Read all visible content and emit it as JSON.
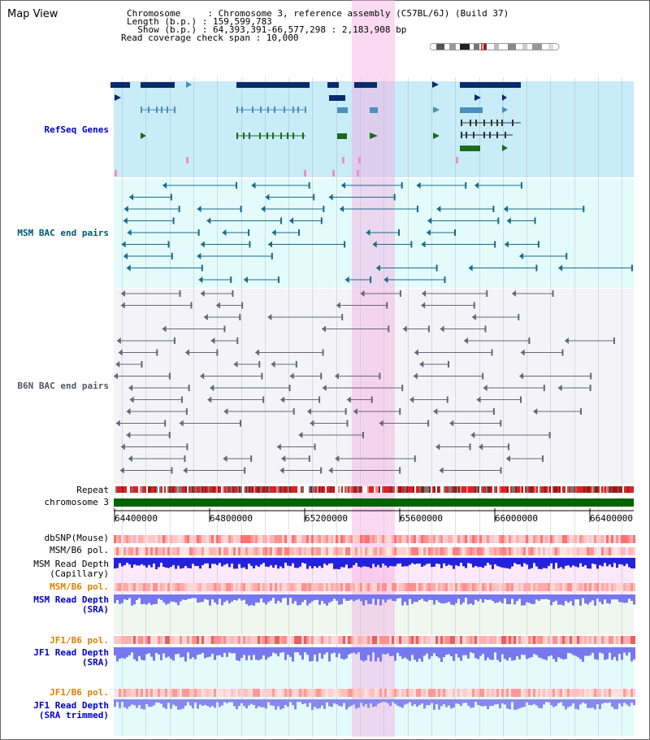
{
  "header": {
    "title": "Map View",
    "chromosome_line": "Chromosome     : Chromosome 3, reference assembly (C57BL/6J) (Build 37)",
    "length_line": "Length (b.p.) : 159,599,783",
    "show_line": "  Show (b.p.) : 64,393,391-66,577,298 : 2,183,908 bp",
    "coverage_line": "Read coverage check span : 10,000"
  },
  "tracks": {
    "refseq": "RefSeq Genes",
    "msm_bac": "MSM BAC end pairs",
    "b6n_bac": "B6N BAC end pairs",
    "repeat": "Repeat",
    "chromosome": "chromosome 3",
    "dbsnp": "dbSNP(Mouse)",
    "msm_b6_pol": "MSM/B6 pol.",
    "msm_depth_cap_1": "MSM Read Depth",
    "msm_depth_cap_2": "(Capillary)",
    "msm_b6_pol_2": "MSM/B6 pol.",
    "msm_depth_sra_1": "MSM Read Depth",
    "msm_depth_sra_2": "(SRA)",
    "jf1_b6_pol": "JF1/B6 pol.",
    "jf1_depth_sra_1": "JF1 Read Depth",
    "jf1_depth_sra_2": "(SRA)",
    "jf1_b6_pol_2": "JF1/B6 pol.",
    "jf1_depth_trim_1": "JF1 Read Depth",
    "jf1_depth_trim_2": "(SRA trimmed)"
  },
  "axis": {
    "ticks": [
      "64400000",
      "64800000",
      "65200000",
      "65600000",
      "66000000",
      "66400000"
    ]
  },
  "colors": {
    "refseq_bg": "#c8ecf8",
    "msm_bg": "#e4fbfb",
    "b6n_bg": "#f4f4f8",
    "highlight": "#f5aae1",
    "gene_dark": "#0a2a6a",
    "gene_mid": "#4a90b8",
    "gene_green": "#1b6b1b",
    "chromosome_bar": "#006400",
    "depth_blue": "#2222dd",
    "depth_light": "#7777ee"
  }
}
